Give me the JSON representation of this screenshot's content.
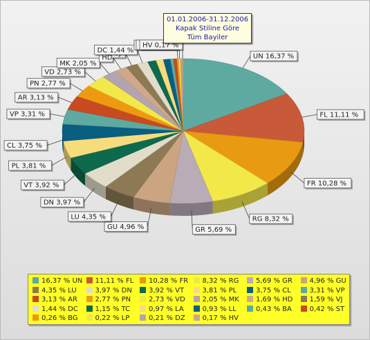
{
  "title": {
    "line1": "01.01.2006-31.12.2006",
    "line2": "Kapak Stiline Göre",
    "line3": "Tüm Bayiler"
  },
  "chart_data": {
    "type": "pie",
    "title": "01.01.2006-31.12.2006 Kapak Stiline Göre Tüm Bayiler",
    "legend_placement": "bottom",
    "slices": [
      {
        "name": "UN",
        "value": 16.37,
        "label": "UN 16,37 %",
        "legend": "16,37 % UN",
        "color": "#5ea9a0"
      },
      {
        "name": "FL",
        "value": 11.11,
        "label": "FL 11,11 %",
        "legend": "11,11 % FL",
        "color": "#c85a3a"
      },
      {
        "name": "FR",
        "value": 10.28,
        "label": "FR 10,28 %",
        "legend": "10,28 % FR",
        "color": "#e89a12"
      },
      {
        "name": "RG",
        "value": 8.32,
        "label": "RG 8,32 %",
        "legend": "8,32 % RG",
        "color": "#f2e84a"
      },
      {
        "name": "GR",
        "value": 5.69,
        "label": "GR 5,69 %",
        "legend": "5,69 % GR",
        "color": "#b9acb6"
      },
      {
        "name": "GU",
        "value": 4.96,
        "label": "GU 4,96 %",
        "legend": "4,96 % GU",
        "color": "#cba482"
      },
      {
        "name": "LU",
        "value": 4.35,
        "label": "LU 4,35 %",
        "legend": "4,35 % LU",
        "color": "#8d7a55"
      },
      {
        "name": "DN",
        "value": 3.97,
        "label": "DN 3,97 %",
        "legend": "3,97 % DN",
        "color": "#e2dccb"
      },
      {
        "name": "VT",
        "value": 3.92,
        "label": "VT 3,92 %",
        "legend": "3,92 % VT",
        "color": "#0d6a4c"
      },
      {
        "name": "PL",
        "value": 3.81,
        "label": "PL 3,81 %",
        "legend": "3,81 % PL",
        "color": "#f6dc7c"
      },
      {
        "name": "CL",
        "value": 3.75,
        "label": "CL 3,75 %",
        "legend": "3,75 % CL",
        "color": "#085f80"
      },
      {
        "name": "VP",
        "value": 3.31,
        "label": "VP 3,31 %",
        "legend": "3,31 % VP",
        "color": "#5ea9a0"
      },
      {
        "name": "AR",
        "value": 3.13,
        "label": "AR 3,13 %",
        "legend": "3,13 % AR",
        "color": "#c84a20"
      },
      {
        "name": "PN",
        "value": 2.77,
        "label": "PN 2,77 %",
        "legend": "2,77 % PN",
        "color": "#ee9a10"
      },
      {
        "name": "VD",
        "value": 2.73,
        "label": "VD 2,73 %",
        "legend": "2,73 % VD",
        "color": "#f2e84a"
      },
      {
        "name": "MK",
        "value": 2.05,
        "label": "MK 2,05 %",
        "legend": "2,05 % MK",
        "color": "#b3a5b0"
      },
      {
        "name": "HD",
        "value": 1.69,
        "label": "HD",
        "legend": "1,69 % HD",
        "color": "#cfa789"
      },
      {
        "name": "VJ",
        "value": 1.59,
        "label": "VJ",
        "legend": "1,59 % VJ",
        "color": "#8d7a55"
      },
      {
        "name": "DC",
        "value": 1.44,
        "label": "DC 1,44 %",
        "legend": "1,44 % DC",
        "color": "#e2dccb"
      },
      {
        "name": "TC",
        "value": 1.15,
        "label": "",
        "legend": "1,15 % TC",
        "color": "#0d6a4c"
      },
      {
        "name": "LA",
        "value": 0.97,
        "label": "",
        "legend": "0,97 % LA",
        "color": "#f6dc7c"
      },
      {
        "name": "LL",
        "value": 0.93,
        "label": "",
        "legend": "0,93 % LL",
        "color": "#085f80"
      },
      {
        "name": "BA",
        "value": 0.43,
        "label": "",
        "legend": "0,43 % BA",
        "color": "#5ea9a0"
      },
      {
        "name": "ST",
        "value": 0.42,
        "label": "",
        "legend": "0,42 % ST",
        "color": "#c84a20"
      },
      {
        "name": "BG",
        "value": 0.26,
        "label": "BG 0,26 %",
        "legend": "0,26 % BG",
        "color": "#ee9a10"
      },
      {
        "name": "LP",
        "value": 0.22,
        "label": "LP 0,22 %",
        "legend": "0,22 % LP",
        "color": "#f2e84a"
      },
      {
        "name": "DZ",
        "value": 0.21,
        "label": "",
        "legend": "0,21 % DZ",
        "color": "#b3a5b0"
      },
      {
        "name": "HV",
        "value": 0.17,
        "label": "HV 0,17 %",
        "legend": "0,17 % HV",
        "color": "#cfa789"
      }
    ]
  }
}
